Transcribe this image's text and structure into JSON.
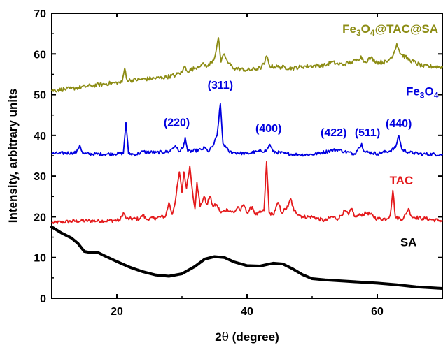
{
  "chart_data": {
    "type": "line",
    "xlabel_prefix": "2",
    "xlabel_theta": "θ",
    "xlabel_suffix": " (degree)",
    "ylabel": "Intensity, arbitrary units",
    "xlim": [
      10,
      70
    ],
    "ylim": [
      0,
      70
    ],
    "xticks": [
      20,
      40,
      60
    ],
    "yticks": [
      0,
      10,
      20,
      30,
      40,
      50,
      60,
      70
    ],
    "grid": false,
    "series": [
      {
        "key": "sa",
        "color": "#000000",
        "width": 4,
        "label_parts": [
          "SA"
        ],
        "noise": 0,
        "points": [
          [
            10.0,
            17.5
          ],
          [
            11.5,
            16.0
          ],
          [
            13.0,
            14.8
          ],
          [
            14.0,
            13.5
          ],
          [
            15.0,
            11.5
          ],
          [
            16.0,
            11.2
          ],
          [
            17.0,
            11.3
          ],
          [
            18.0,
            10.5
          ],
          [
            20.0,
            9.0
          ],
          [
            22.0,
            7.6
          ],
          [
            24.0,
            6.5
          ],
          [
            26.0,
            5.7
          ],
          [
            28.0,
            5.4
          ],
          [
            30.0,
            6.0
          ],
          [
            32.0,
            7.8
          ],
          [
            33.5,
            9.6
          ],
          [
            35.0,
            10.2
          ],
          [
            36.5,
            10.0
          ],
          [
            38.0,
            8.9
          ],
          [
            40.0,
            8.0
          ],
          [
            42.0,
            7.9
          ],
          [
            44.0,
            8.6
          ],
          [
            45.5,
            8.4
          ],
          [
            47.0,
            7.2
          ],
          [
            48.5,
            5.8
          ],
          [
            50.0,
            4.8
          ],
          [
            52.0,
            4.5
          ],
          [
            55.0,
            4.2
          ],
          [
            58.0,
            3.9
          ],
          [
            60.0,
            3.7
          ],
          [
            63.0,
            3.3
          ],
          [
            66.0,
            2.8
          ],
          [
            70.0,
            2.4
          ]
        ]
      },
      {
        "key": "tac",
        "color": "#e41a1c",
        "width": 1.8,
        "label_parts": [
          "TAC"
        ],
        "noise": 0.45,
        "points": [
          [
            10.0,
            18.5
          ],
          [
            14.0,
            19.0
          ],
          [
            18.0,
            19.0
          ],
          [
            20.5,
            19.2
          ],
          [
            21.0,
            21.0
          ],
          [
            21.5,
            19.5
          ],
          [
            23.5,
            19.5
          ],
          [
            24.0,
            20.5
          ],
          [
            24.5,
            19.4
          ],
          [
            26.0,
            19.7
          ],
          [
            27.5,
            20.2
          ],
          [
            28.0,
            23.5
          ],
          [
            28.5,
            20.6
          ],
          [
            29.0,
            24.0
          ],
          [
            29.6,
            31.0
          ],
          [
            30.0,
            26.0
          ],
          [
            30.3,
            31.0
          ],
          [
            30.7,
            27.0
          ],
          [
            31.2,
            32.5
          ],
          [
            31.6,
            26.5
          ],
          [
            32.0,
            22.0
          ],
          [
            32.3,
            28.5
          ],
          [
            32.8,
            22.5
          ],
          [
            33.4,
            25.0
          ],
          [
            33.8,
            23.0
          ],
          [
            34.3,
            25.0
          ],
          [
            34.8,
            22.5
          ],
          [
            35.3,
            23.0
          ],
          [
            36.0,
            21.0
          ],
          [
            37.0,
            21.8
          ],
          [
            38.0,
            21.0
          ],
          [
            38.6,
            22.5
          ],
          [
            39.0,
            21.5
          ],
          [
            39.5,
            23.0
          ],
          [
            40.0,
            21.0
          ],
          [
            40.8,
            22.5
          ],
          [
            41.3,
            20.5
          ],
          [
            42.0,
            21.0
          ],
          [
            42.6,
            21.5
          ],
          [
            43.0,
            33.5
          ],
          [
            43.4,
            21.0
          ],
          [
            44.0,
            20.5
          ],
          [
            44.8,
            23.5
          ],
          [
            45.3,
            21.0
          ],
          [
            46.3,
            22.5
          ],
          [
            46.7,
            24.5
          ],
          [
            47.2,
            21.5
          ],
          [
            48.5,
            20.0
          ],
          [
            50.0,
            20.0
          ],
          [
            52.0,
            19.0
          ],
          [
            53.0,
            20.0
          ],
          [
            54.0,
            19.5
          ],
          [
            55.0,
            21.5
          ],
          [
            55.6,
            20.5
          ],
          [
            56.0,
            22.0
          ],
          [
            56.6,
            20.0
          ],
          [
            57.5,
            20.5
          ],
          [
            58.5,
            21.0
          ],
          [
            60.0,
            19.5
          ],
          [
            61.5,
            19.5
          ],
          [
            62.0,
            20.5
          ],
          [
            62.4,
            26.5
          ],
          [
            62.8,
            19.8
          ],
          [
            64.0,
            19.5
          ],
          [
            64.8,
            22.0
          ],
          [
            65.3,
            20.0
          ],
          [
            67.0,
            19.6
          ],
          [
            70.0,
            19.0
          ]
        ]
      },
      {
        "key": "fe3o4",
        "color": "#0000e0",
        "width": 1.8,
        "label_parts": [
          "Fe",
          "3",
          "O",
          "4"
        ],
        "noise": 0.4,
        "points": [
          [
            10.0,
            35.5
          ],
          [
            13.8,
            35.8
          ],
          [
            14.3,
            37.6
          ],
          [
            14.8,
            35.5
          ],
          [
            18.0,
            35.4
          ],
          [
            21.0,
            35.6
          ],
          [
            21.4,
            43.2
          ],
          [
            21.8,
            35.5
          ],
          [
            23.0,
            35.3
          ],
          [
            24.0,
            36.0
          ],
          [
            26.0,
            35.8
          ],
          [
            28.0,
            36.0
          ],
          [
            29.0,
            37.5
          ],
          [
            29.5,
            36.0
          ],
          [
            30.2,
            37.0
          ],
          [
            30.5,
            39.5
          ],
          [
            30.9,
            36.0
          ],
          [
            33.0,
            36.5
          ],
          [
            33.5,
            37.0
          ],
          [
            34.0,
            36.0
          ],
          [
            34.8,
            37.5
          ],
          [
            35.4,
            40.0
          ],
          [
            35.9,
            47.8
          ],
          [
            36.3,
            38.0
          ],
          [
            36.8,
            37.0
          ],
          [
            37.2,
            36.0
          ],
          [
            38.0,
            35.8
          ],
          [
            40.0,
            35.5
          ],
          [
            41.5,
            36.0
          ],
          [
            43.0,
            36.3
          ],
          [
            43.5,
            37.8
          ],
          [
            44.0,
            36.0
          ],
          [
            46.0,
            35.5
          ],
          [
            48.0,
            35.3
          ],
          [
            50.0,
            35.3
          ],
          [
            51.5,
            35.8
          ],
          [
            53.0,
            36.3
          ],
          [
            54.0,
            36.5
          ],
          [
            55.0,
            36.0
          ],
          [
            56.5,
            35.5
          ],
          [
            57.2,
            37.0
          ],
          [
            57.6,
            38.0
          ],
          [
            58.0,
            36.0
          ],
          [
            60.0,
            35.5
          ],
          [
            62.0,
            36.2
          ],
          [
            62.8,
            37.0
          ],
          [
            63.3,
            40.0
          ],
          [
            63.8,
            36.5
          ],
          [
            65.0,
            35.8
          ],
          [
            67.0,
            35.4
          ],
          [
            70.0,
            35.3
          ]
        ]
      },
      {
        "key": "composite",
        "color": "#8c8c14",
        "width": 1.8,
        "label_parts": [
          "Fe",
          "3",
          "O",
          "4",
          "@TAC@SA"
        ],
        "noise": 0.5,
        "points": [
          [
            10.0,
            51.0
          ],
          [
            13.0,
            51.5
          ],
          [
            16.0,
            52.2
          ],
          [
            19.0,
            52.8
          ],
          [
            20.8,
            53.0
          ],
          [
            21.2,
            56.5
          ],
          [
            21.6,
            53.5
          ],
          [
            24.0,
            53.8
          ],
          [
            27.0,
            54.2
          ],
          [
            29.0,
            54.8
          ],
          [
            30.0,
            55.5
          ],
          [
            30.4,
            57.0
          ],
          [
            30.8,
            55.8
          ],
          [
            32.0,
            56.5
          ],
          [
            33.0,
            57.5
          ],
          [
            34.0,
            57.0
          ],
          [
            35.0,
            59.0
          ],
          [
            35.6,
            64.0
          ],
          [
            36.0,
            58.0
          ],
          [
            36.5,
            60.0
          ],
          [
            37.0,
            58.0
          ],
          [
            38.0,
            56.5
          ],
          [
            40.0,
            56.0
          ],
          [
            42.0,
            56.5
          ],
          [
            42.6,
            57.5
          ],
          [
            43.0,
            59.5
          ],
          [
            43.5,
            57.0
          ],
          [
            45.0,
            56.8
          ],
          [
            47.0,
            56.5
          ],
          [
            49.0,
            57.0
          ],
          [
            52.0,
            57.2
          ],
          [
            53.0,
            58.0
          ],
          [
            54.0,
            57.5
          ],
          [
            55.0,
            57.5
          ],
          [
            56.0,
            58.0
          ],
          [
            57.0,
            58.5
          ],
          [
            57.5,
            59.5
          ],
          [
            58.0,
            58.0
          ],
          [
            59.0,
            59.0
          ],
          [
            60.0,
            58.0
          ],
          [
            61.5,
            58.0
          ],
          [
            62.5,
            60.0
          ],
          [
            63.0,
            62.5
          ],
          [
            63.6,
            60.0
          ],
          [
            65.0,
            58.5
          ],
          [
            67.0,
            57.0
          ],
          [
            70.0,
            56.8
          ]
        ]
      }
    ],
    "series_label_positions": {
      "composite": [
        62.0,
        65.2
      ],
      "fe3o4": [
        66.9,
        49.8
      ],
      "tac": [
        63.7,
        28.0
      ],
      "sa": [
        64.8,
        12.8
      ]
    },
    "peak_labels": [
      {
        "text": "(220)",
        "x": 29.2,
        "y": 42.3
      },
      {
        "text": "(311)",
        "x": 35.9,
        "y": 51.5
      },
      {
        "text": "(400)",
        "x": 43.3,
        "y": 40.8
      },
      {
        "text": "(422)",
        "x": 53.3,
        "y": 39.8
      },
      {
        "text": "(511)",
        "x": 58.5,
        "y": 39.8
      },
      {
        "text": "(440)",
        "x": 63.3,
        "y": 42.0
      }
    ],
    "peak_label_color": "#0000e0"
  }
}
